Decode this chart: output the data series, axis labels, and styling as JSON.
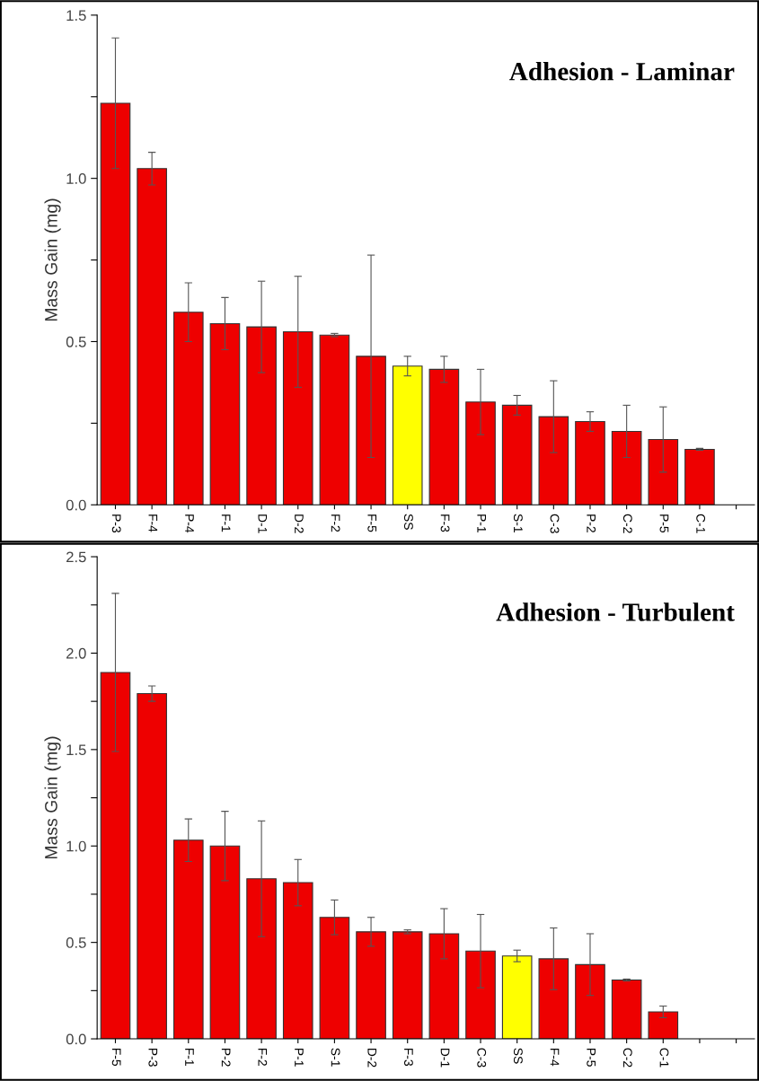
{
  "chart_data": [
    {
      "type": "bar",
      "title": "Adhesion - Laminar",
      "ylabel": "Mass Gain (mg)",
      "categories": [
        "P-3",
        "F-4",
        "P-4",
        "F-1",
        "D-1",
        "D-2",
        "F-2",
        "F-5",
        "SS",
        "F-3",
        "P-1",
        "S-1",
        "C-3",
        "P-2",
        "C-2",
        "P-5",
        "C-1",
        null
      ],
      "values": [
        1.23,
        1.03,
        0.59,
        0.555,
        0.545,
        0.53,
        0.52,
        0.455,
        0.425,
        0.415,
        0.315,
        0.305,
        0.27,
        0.255,
        0.225,
        0.2,
        0.17,
        null
      ],
      "errors": [
        0.2,
        0.05,
        0.09,
        0.08,
        0.14,
        0.17,
        0.005,
        0.31,
        0.03,
        0.04,
        0.1,
        0.03,
        0.11,
        0.03,
        0.08,
        0.1,
        0.003,
        null
      ],
      "colors": [
        "#ee0000",
        "#ee0000",
        "#ee0000",
        "#ee0000",
        "#ee0000",
        "#ee0000",
        "#ee0000",
        "#ee0000",
        "#ffff00",
        "#ee0000",
        "#ee0000",
        "#ee0000",
        "#ee0000",
        "#ee0000",
        "#ee0000",
        "#ee0000",
        "#ee0000",
        "#ee0000"
      ],
      "ylim": [
        0,
        1.5
      ],
      "yticks": [
        {
          "value": 0,
          "label": "0.0"
        },
        {
          "value": 0.25,
          "label": null
        },
        0.5,
        {
          "value": 0.75,
          "label": null
        },
        {
          "value": 1,
          "label": "1.0"
        },
        {
          "value": 1.25,
          "label": null
        },
        1.5
      ],
      "grid": false,
      "legend": false
    },
    {
      "type": "bar",
      "title": "Adhesion - Turbulent",
      "ylabel": "Mass Gain (mg)",
      "categories": [
        "F-5",
        "P-3",
        "F-1",
        "P-2",
        "F-2",
        "P-1",
        "S-1",
        "D-2",
        "F-3",
        "D-1",
        "C-3",
        "SS",
        "F-4",
        "P-5",
        "C-2",
        "C-1",
        null,
        null
      ],
      "values": [
        1.9,
        1.79,
        1.03,
        1.0,
        0.83,
        0.81,
        0.63,
        0.555,
        0.555,
        0.545,
        0.455,
        0.43,
        0.415,
        0.385,
        0.305,
        0.14,
        null,
        null
      ],
      "errors": [
        0.41,
        0.04,
        0.11,
        0.18,
        0.3,
        0.12,
        0.09,
        0.075,
        0.01,
        0.13,
        0.19,
        0.03,
        0.16,
        0.16,
        0.005,
        0.03,
        null,
        null
      ],
      "colors": [
        "#ee0000",
        "#ee0000",
        "#ee0000",
        "#ee0000",
        "#ee0000",
        "#ee0000",
        "#ee0000",
        "#ee0000",
        "#ee0000",
        "#ee0000",
        "#ee0000",
        "#ffff00",
        "#ee0000",
        "#ee0000",
        "#ee0000",
        "#ee0000",
        "#ee0000",
        "#ee0000"
      ],
      "ylim": [
        0,
        2.5
      ],
      "yticks": [
        {
          "value": 0,
          "label": "0.0"
        },
        {
          "value": 0.25,
          "label": null
        },
        0.5,
        {
          "value": 0.75,
          "label": null
        },
        {
          "value": 1,
          "label": "1.0"
        },
        {
          "value": 1.25,
          "label": null
        },
        1.5,
        {
          "value": 1.75,
          "label": null
        },
        {
          "value": 2,
          "label": "2.0"
        },
        {
          "value": 2.25,
          "label": null
        },
        2.5
      ],
      "grid": false,
      "legend": false
    }
  ]
}
